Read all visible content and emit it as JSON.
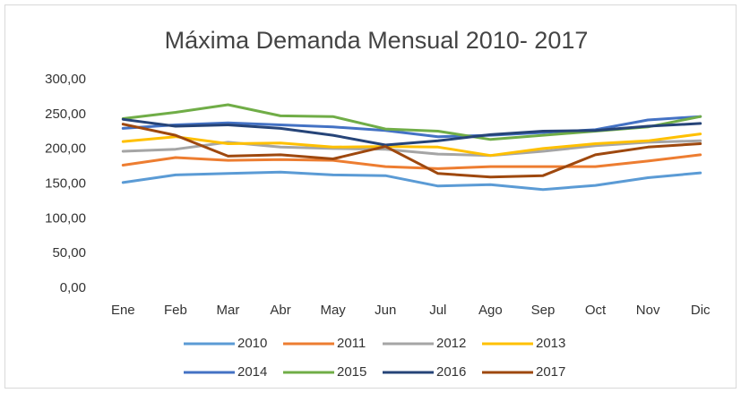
{
  "chart_data": {
    "type": "line",
    "title": "Máxima Demanda Mensual 2010- 2017",
    "categories": [
      "Ene",
      "Feb",
      "Mar",
      "Abr",
      "May",
      "Jun",
      "Jul",
      "Ago",
      "Sep",
      "Oct",
      "Nov",
      "Dic"
    ],
    "ylim": [
      0,
      300
    ],
    "yticks": [
      {
        "value": 0,
        "label": "0,00"
      },
      {
        "value": 50,
        "label": "50,00"
      },
      {
        "value": 100,
        "label": "100,00"
      },
      {
        "value": 150,
        "label": "150,00"
      },
      {
        "value": 200,
        "label": "200,00"
      },
      {
        "value": 250,
        "label": "250,00"
      },
      {
        "value": 300,
        "label": "300,00"
      }
    ],
    "grid": false,
    "legend": "bottom",
    "series": [
      {
        "name": "2010",
        "color": "#5b9bd5",
        "values": [
          152,
          163,
          165,
          167,
          163,
          162,
          147,
          149,
          142,
          148,
          159,
          166
        ]
      },
      {
        "name": "2011",
        "color": "#ed7d31",
        "values": [
          177,
          188,
          184,
          185,
          184,
          175,
          172,
          175,
          175,
          175,
          183,
          192
        ]
      },
      {
        "name": "2012",
        "color": "#a5a5a5",
        "values": [
          197,
          200,
          210,
          203,
          201,
          200,
          193,
          191,
          197,
          205,
          210,
          212
        ]
      },
      {
        "name": "2013",
        "color": "#ffc000",
        "values": [
          211,
          218,
          208,
          209,
          203,
          204,
          203,
          191,
          201,
          208,
          212,
          222
        ]
      },
      {
        "name": "2014",
        "color": "#4472c4",
        "values": [
          230,
          235,
          238,
          235,
          232,
          227,
          218,
          220,
          224,
          228,
          242,
          247
        ]
      },
      {
        "name": "2015",
        "color": "#70ad47",
        "values": [
          244,
          253,
          264,
          248,
          247,
          229,
          226,
          214,
          220,
          226,
          232,
          247
        ]
      },
      {
        "name": "2016",
        "color": "#264478",
        "values": [
          243,
          233,
          235,
          230,
          220,
          206,
          212,
          221,
          226,
          227,
          233,
          237
        ]
      },
      {
        "name": "2017",
        "color": "#9e480e",
        "values": [
          236,
          220,
          190,
          192,
          186,
          204,
          165,
          160,
          162,
          192,
          203,
          208
        ]
      }
    ]
  }
}
